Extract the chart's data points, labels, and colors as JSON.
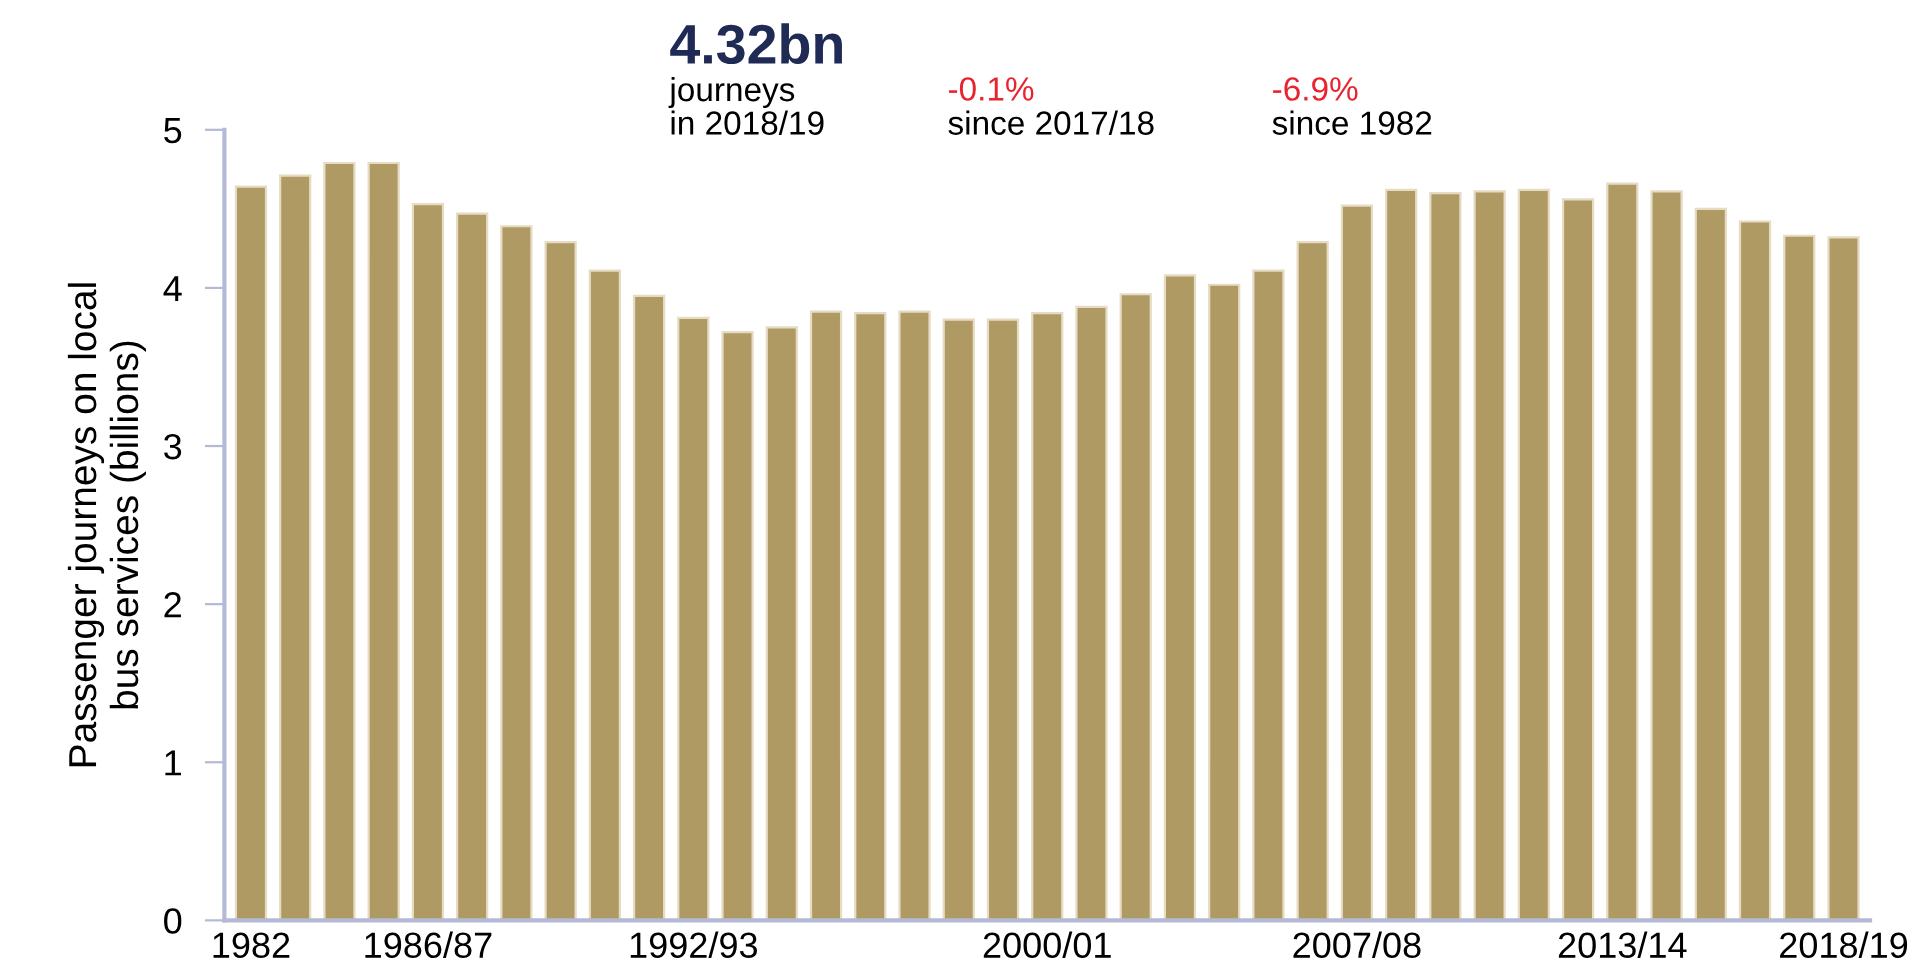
{
  "chart_data": {
    "type": "bar",
    "title": "4.32bn",
    "ylabel": "Passenger journeys on local\nbus services (billions)",
    "annotations": [
      "journeys\nin 2018/19",
      "-0.1%",
      "since 2017/18",
      "-6.9%",
      "since 1982"
    ],
    "categories": [
      "1982",
      null,
      null,
      null,
      "1986/87",
      null,
      null,
      null,
      null,
      null,
      "1992/93",
      null,
      null,
      null,
      null,
      null,
      null,
      null,
      "2000/01",
      null,
      null,
      null,
      null,
      null,
      null,
      "2007/08",
      null,
      null,
      null,
      null,
      null,
      "2013/14",
      null,
      null,
      null,
      null,
      "2018/19"
    ],
    "values": [
      4.64,
      4.71,
      4.79,
      4.79,
      4.53,
      4.47,
      4.39,
      4.29,
      4.11,
      3.95,
      3.81,
      3.72,
      3.75,
      3.85,
      3.84,
      3.85,
      3.8,
      3.8,
      3.84,
      3.88,
      3.96,
      4.08,
      4.02,
      4.11,
      4.29,
      4.52,
      4.62,
      4.6,
      4.61,
      4.62,
      4.56,
      4.66,
      4.61,
      4.5,
      4.42,
      4.33,
      4.32
    ],
    "color": "#b09a64",
    "ylim": [
      0,
      5
    ],
    "yticks": [
      0,
      1,
      2,
      3,
      4,
      5
    ],
    "grid": false,
    "legend": false
  }
}
